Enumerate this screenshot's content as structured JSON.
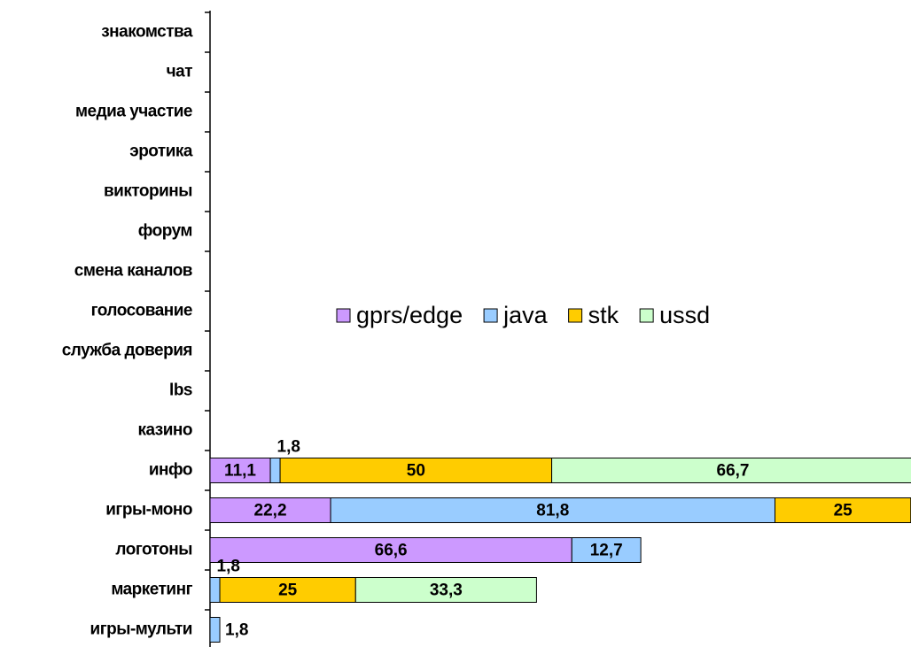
{
  "chart_data": {
    "type": "stacked-bar-horizontal",
    "categories": [
      "знакомства",
      "чат",
      "медиа участие",
      "эротика",
      "викторины",
      "форум",
      "смена каналов",
      "голосование",
      "служба доверия",
      "lbs",
      "казино",
      "инфо",
      "игры-моно",
      "логотоны",
      "маркетинг",
      "игры-мульти"
    ],
    "series": [
      {
        "name": "gprs/edge",
        "color": "#cc99ff",
        "values": [
          null,
          null,
          null,
          null,
          null,
          null,
          null,
          null,
          null,
          null,
          null,
          11.1,
          22.2,
          66.6,
          null,
          null
        ],
        "value_labels": [
          null,
          null,
          null,
          null,
          null,
          null,
          null,
          null,
          null,
          null,
          null,
          "11,1",
          "22,2",
          "66,6",
          null,
          null
        ]
      },
      {
        "name": "java",
        "color": "#99ccff",
        "values": [
          null,
          null,
          null,
          null,
          null,
          null,
          null,
          null,
          null,
          null,
          null,
          1.8,
          81.8,
          12.7,
          1.8,
          1.8
        ],
        "value_labels": [
          null,
          null,
          null,
          null,
          null,
          null,
          null,
          null,
          null,
          null,
          null,
          "1,8",
          "81,8",
          "12,7",
          "1,8",
          "1,8"
        ]
      },
      {
        "name": "stk",
        "color": "#ffcc00",
        "values": [
          null,
          null,
          null,
          null,
          null,
          null,
          null,
          null,
          null,
          null,
          null,
          50,
          25,
          null,
          25,
          null
        ],
        "value_labels": [
          null,
          null,
          null,
          null,
          null,
          null,
          null,
          null,
          null,
          null,
          null,
          "50",
          "25",
          null,
          "25",
          null
        ]
      },
      {
        "name": "ussd",
        "color": "#ccffcc",
        "values": [
          null,
          null,
          null,
          null,
          null,
          null,
          null,
          null,
          null,
          null,
          null,
          66.7,
          null,
          null,
          33.3,
          null
        ],
        "value_labels": [
          null,
          null,
          null,
          null,
          null,
          null,
          null,
          null,
          null,
          null,
          null,
          "66,7",
          null,
          null,
          "33,3",
          null
        ]
      }
    ],
    "legend": "center"
  }
}
